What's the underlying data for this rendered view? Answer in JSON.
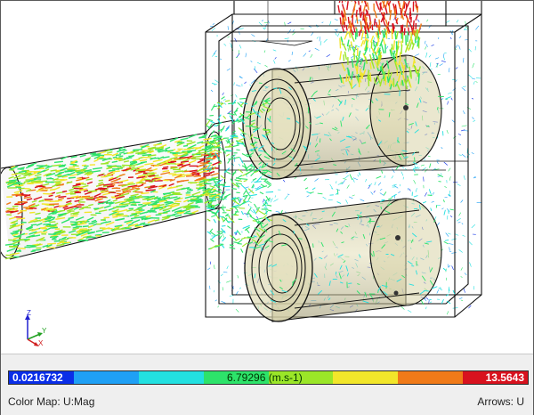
{
  "colorbar": {
    "min_value": "0.0216732",
    "mid_label": "6.79296 (m.s-1)",
    "max_value": "13.5643",
    "colors": [
      "#0a2ee8",
      "#1fa0f5",
      "#22e0e0",
      "#2de36a",
      "#9be628",
      "#f2e62a",
      "#f07a18",
      "#d8121e"
    ]
  },
  "footer": {
    "color_map_label": "Color Map: U:Mag",
    "arrows_label": "Arrows: U"
  },
  "axes": {
    "z": "Z",
    "y": "Y",
    "x": "X"
  },
  "scene": {
    "body_color": "#cdc79a",
    "edge_color": "#111111",
    "icons": [
      "orientation-triad-icon"
    ]
  }
}
